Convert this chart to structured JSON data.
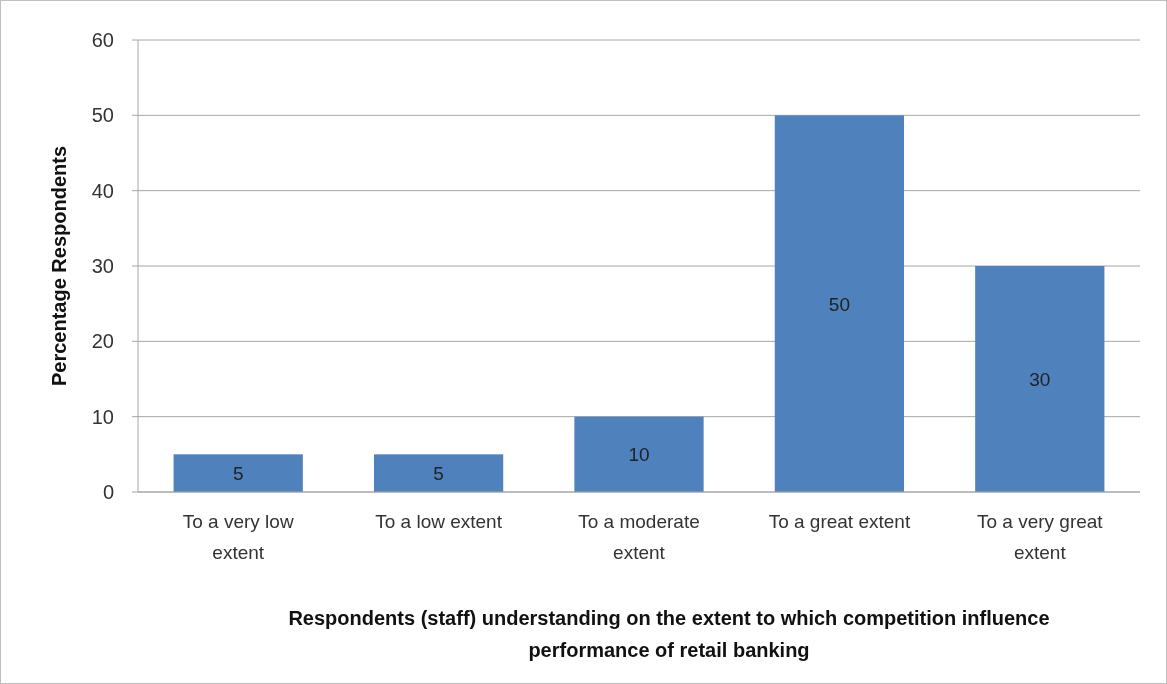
{
  "chart_data": {
    "type": "bar",
    "categories": [
      "To a very low extent",
      "To a low extent",
      "To a moderate extent",
      "To a great extent",
      "To a very great extent"
    ],
    "values": [
      5,
      5,
      10,
      50,
      30
    ],
    "color": "#4f81bd",
    "ylabel": "Percentage Respondents",
    "xlabel": "Respondents (staff)  understanding on the extent to which competition influence performance of retail banking",
    "ylim": [
      0,
      60
    ],
    "yticks": [
      0,
      10,
      20,
      30,
      40,
      50,
      60
    ],
    "grid": "y",
    "data_labels": true
  }
}
